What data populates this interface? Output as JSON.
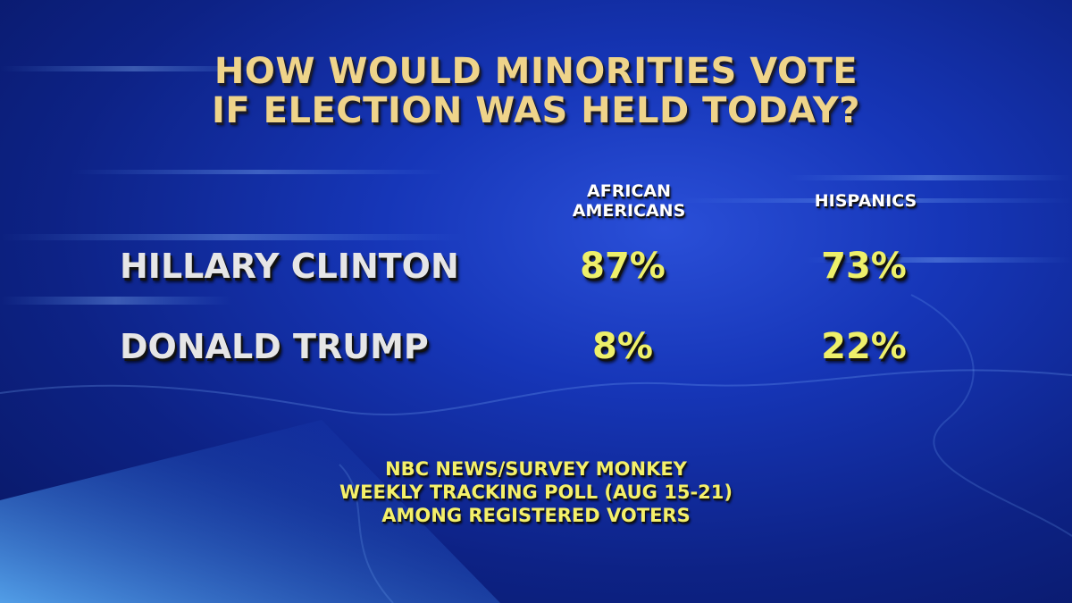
{
  "chart_data": {
    "type": "table",
    "title": [
      "HOW WOULD MINORITIES VOTE",
      "IF ELECTION WAS HELD TODAY?"
    ],
    "columns": [
      [
        "AFRICAN",
        "AMERICANS"
      ],
      [
        "HISPANICS"
      ]
    ],
    "rows": [
      {
        "label": "HILLARY CLINTON",
        "values": [
          "87%",
          "73%"
        ]
      },
      {
        "label": "DONALD TRUMP",
        "values": [
          "8%",
          "22%"
        ]
      }
    ],
    "source": [
      "NBC NEWS/SURVEY MONKEY",
      "WEEKLY TRACKING POLL (AUG 15-21)",
      "AMONG REGISTERED VOTERS"
    ]
  },
  "colors": {
    "background": "#1636b8",
    "title": "#efd48a",
    "values": "#eef06a",
    "labels": "#e6e6e6",
    "source": "#f4f06a"
  }
}
